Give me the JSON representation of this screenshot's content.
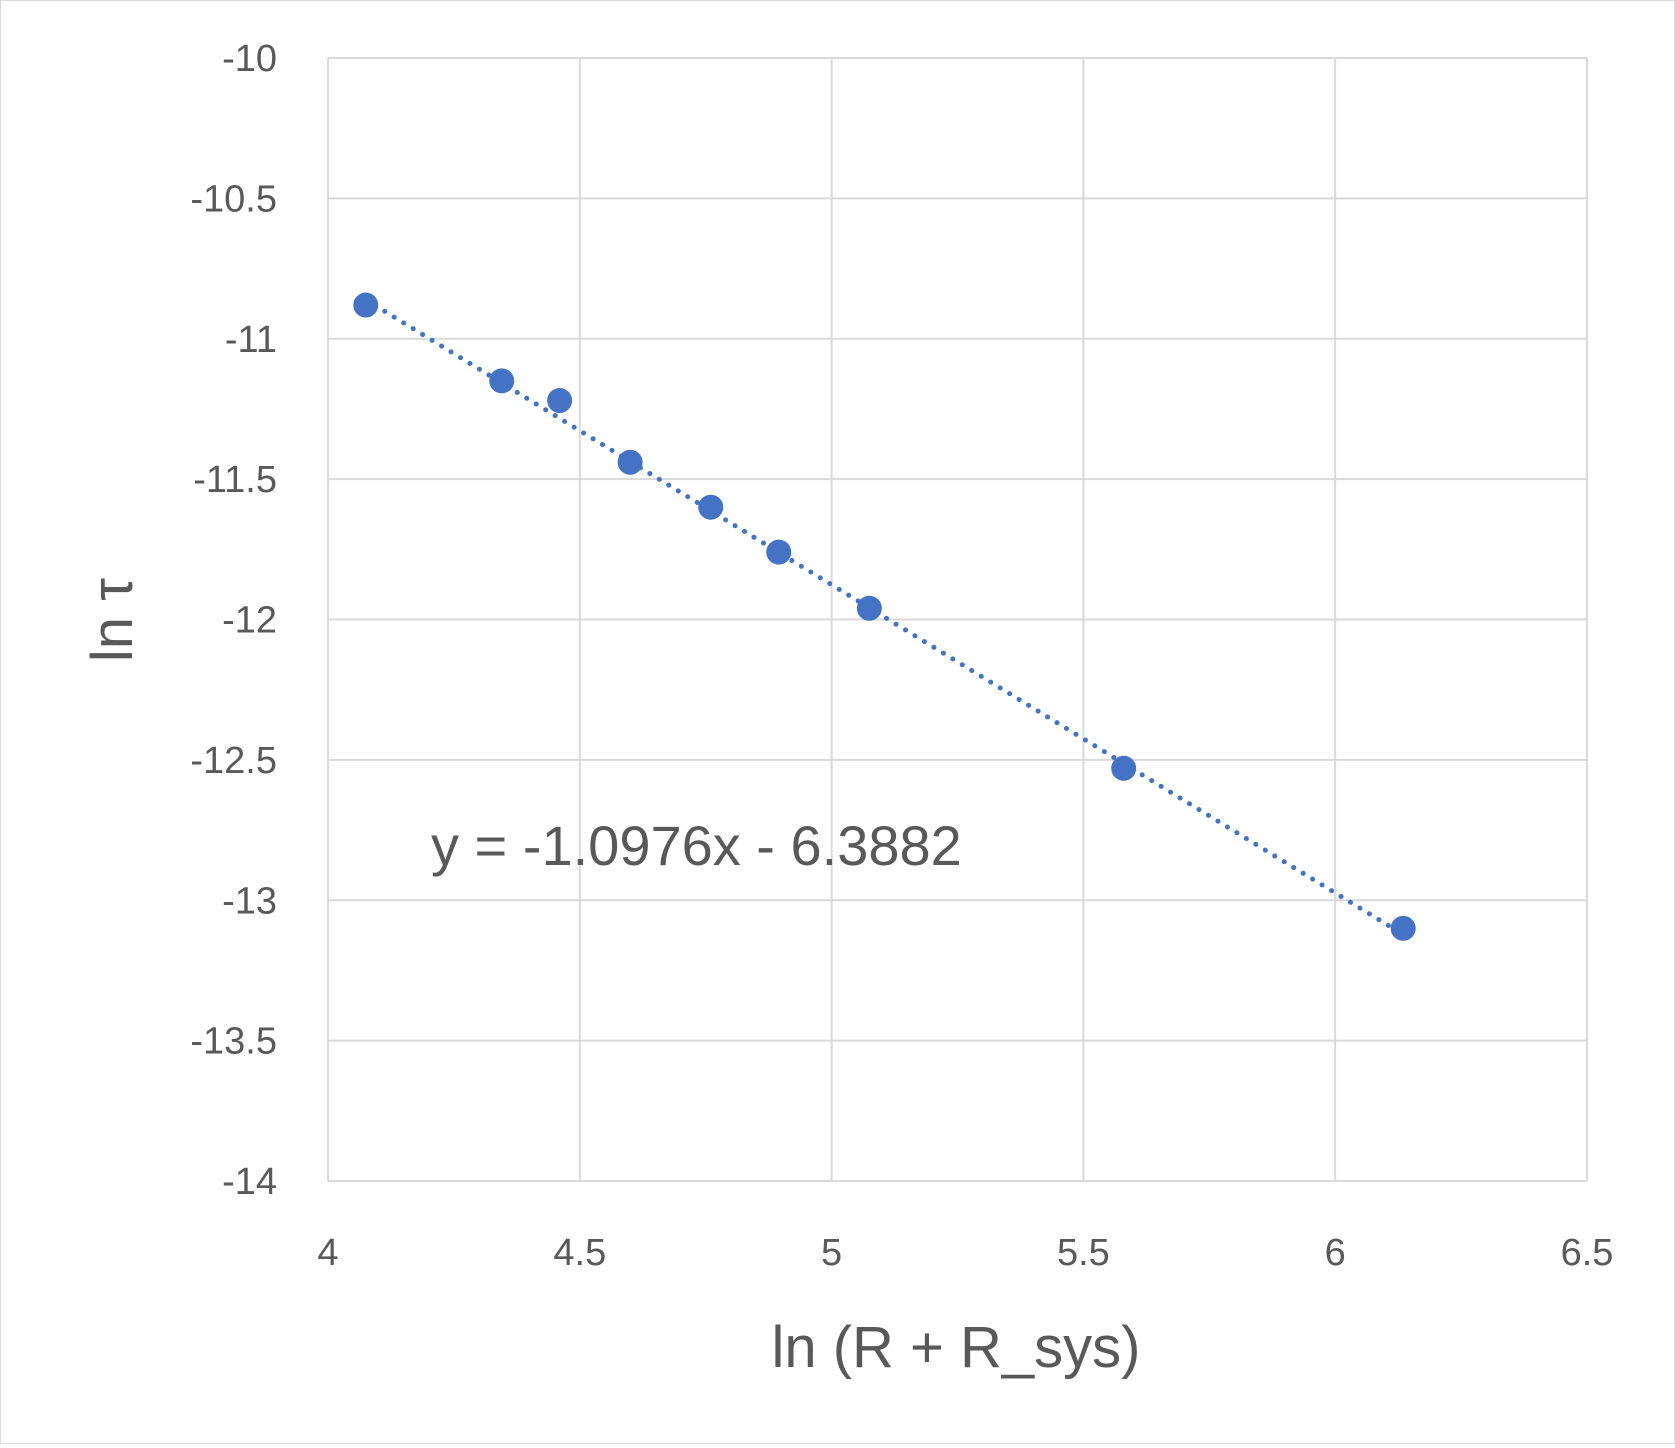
{
  "chart_data": {
    "type": "scatter",
    "title": "",
    "xlabel": "ln (R + R_sys)",
    "ylabel": "ln τ",
    "xlim": [
      4,
      6.5
    ],
    "ylim": [
      -14,
      -10
    ],
    "x_ticks": [
      "4",
      "4.5",
      "5",
      "5.5",
      "6",
      "6.5"
    ],
    "y_ticks": [
      "-10",
      "-10.5",
      "-11",
      "-11.5",
      "-12",
      "-12.5",
      "-13",
      "-13.5",
      "-14"
    ],
    "grid": true,
    "legend": "none",
    "series": [
      {
        "points": [
          {
            "x": 4.075,
            "y": -10.88
          },
          {
            "x": 4.345,
            "y": -11.15
          },
          {
            "x": 4.46,
            "y": -11.22
          },
          {
            "x": 4.6,
            "y": -11.44
          },
          {
            "x": 4.76,
            "y": -11.6
          },
          {
            "x": 4.895,
            "y": -11.76
          },
          {
            "x": 5.075,
            "y": -11.96
          },
          {
            "x": 5.58,
            "y": -12.53
          },
          {
            "x": 6.135,
            "y": -13.1
          }
        ],
        "color": "#4472c4"
      }
    ],
    "trendline": {
      "type": "linear",
      "slope": -1.0976,
      "intercept": -6.3882,
      "style": "dotted",
      "color": "#4472c4",
      "equation_label": "y = -1.0976x - 6.3882"
    },
    "colors": {
      "gridline": "#d9d9d9",
      "text": "#595959",
      "marker": "#4472c4"
    }
  }
}
